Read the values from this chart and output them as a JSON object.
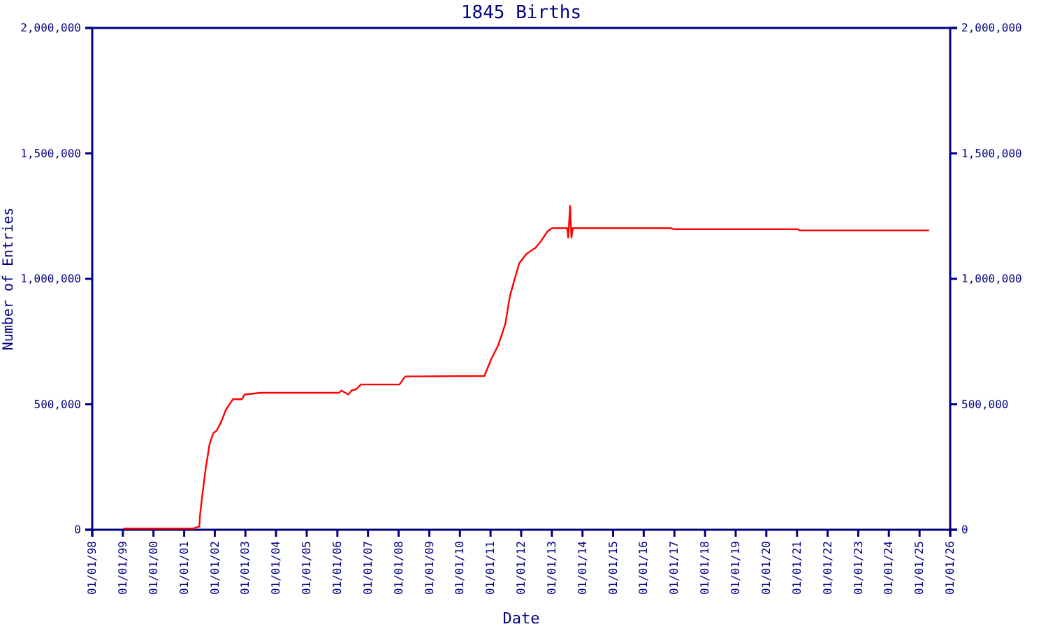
{
  "chart_data": {
    "type": "line",
    "title": "1845 Births",
    "xlabel": "Date",
    "ylabel": "Number of Entries",
    "xlim": [
      "1998-01-01",
      "2026-01-01"
    ],
    "xticks": [
      {
        "value": "1998-01-01",
        "label": "01/01/98"
      },
      {
        "value": "1999-01-01",
        "label": "01/01/99"
      },
      {
        "value": "2000-01-01",
        "label": "01/01/00"
      },
      {
        "value": "2001-01-01",
        "label": "01/01/01"
      },
      {
        "value": "2002-01-01",
        "label": "01/01/02"
      },
      {
        "value": "2003-01-01",
        "label": "01/01/03"
      },
      {
        "value": "2004-01-01",
        "label": "01/01/04"
      },
      {
        "value": "2005-01-01",
        "label": "01/01/05"
      },
      {
        "value": "2006-01-01",
        "label": "01/01/06"
      },
      {
        "value": "2007-01-01",
        "label": "01/01/07"
      },
      {
        "value": "2008-01-01",
        "label": "01/01/08"
      },
      {
        "value": "2009-01-01",
        "label": "01/01/09"
      },
      {
        "value": "2010-01-01",
        "label": "01/01/10"
      },
      {
        "value": "2011-01-01",
        "label": "01/01/11"
      },
      {
        "value": "2012-01-01",
        "label": "01/01/12"
      },
      {
        "value": "2013-01-01",
        "label": "01/01/13"
      },
      {
        "value": "2014-01-01",
        "label": "01/01/14"
      },
      {
        "value": "2015-01-01",
        "label": "01/01/15"
      },
      {
        "value": "2016-01-01",
        "label": "01/01/16"
      },
      {
        "value": "2017-01-01",
        "label": "01/01/17"
      },
      {
        "value": "2018-01-01",
        "label": "01/01/18"
      },
      {
        "value": "2019-01-01",
        "label": "01/01/19"
      },
      {
        "value": "2020-01-01",
        "label": "01/01/20"
      },
      {
        "value": "2021-01-01",
        "label": "01/01/21"
      },
      {
        "value": "2022-01-01",
        "label": "01/01/22"
      },
      {
        "value": "2023-01-01",
        "label": "01/01/23"
      },
      {
        "value": "2024-01-01",
        "label": "01/01/24"
      },
      {
        "value": "2025-01-01",
        "label": "01/01/25"
      },
      {
        "value": "2026-01-01",
        "label": "01/01/26"
      }
    ],
    "ylim": [
      0,
      2000000
    ],
    "yticks": [
      {
        "value": 0,
        "label": "0"
      },
      {
        "value": 500000,
        "label": "500,000"
      },
      {
        "value": 1000000,
        "label": "1,000,000"
      },
      {
        "value": 1500000,
        "label": "1,500,000"
      },
      {
        "value": 2000000,
        "label": "2,000,000"
      }
    ],
    "y2lim": [
      0,
      2000000
    ],
    "y2ticks": [
      {
        "value": 0,
        "label": "0"
      },
      {
        "value": 500000,
        "label": "500,000"
      },
      {
        "value": 1000000,
        "label": "1,000,000"
      },
      {
        "value": 1500000,
        "label": "1,500,000"
      },
      {
        "value": 2000000,
        "label": "2,000,000"
      }
    ],
    "grid": false,
    "marker": "none",
    "line_style": "solid",
    "x": [
      "1999-01-07",
      "2001-04-18",
      "2001-07-01",
      "2001-07-10",
      "2001-08-08",
      "2001-09-15",
      "2001-10-30",
      "2001-12-14",
      "2002-01-22",
      "2002-03-18",
      "2002-05-14",
      "2002-08-05",
      "2002-11-23",
      "2002-12-21",
      "2003-07-03",
      "2006-01-22",
      "2006-02-18",
      "2006-05-11",
      "2006-06-20",
      "2006-08-14",
      "2006-10-08",
      "2008-01-12",
      "2008-03-19",
      "2010-10-19",
      "2011-01-11",
      "2011-04-04",
      "2011-06-26",
      "2011-08-20",
      "2011-10-14",
      "2011-12-09",
      "2012-03-02",
      "2012-06-20",
      "2012-08-16",
      "2012-11-07",
      "2013-01-01",
      "2013-07-03",
      "2013-07-15",
      "2013-08-06",
      "2013-08-22",
      "2013-09-08",
      "2016-11-16",
      "2016-12-30",
      "2021-01-11",
      "2021-01-27",
      "2025-04-24"
    ],
    "series": [
      {
        "color": "#ff0000",
        "values": [
          5000,
          5000,
          13000,
          61000,
          145000,
          245000,
          340000,
          385000,
          395000,
          430000,
          479000,
          520000,
          520000,
          539000,
          546000,
          546000,
          555000,
          539000,
          555000,
          560000,
          579000,
          579000,
          611000,
          613000,
          681000,
          737000,
          820000,
          932000,
          997000,
          1062000,
          1099000,
          1124000,
          1146000,
          1188000,
          1202000,
          1202000,
          1164000,
          1291000,
          1164000,
          1202000,
          1202000,
          1198000,
          1198000,
          1193000,
          1193000
        ]
      }
    ]
  }
}
